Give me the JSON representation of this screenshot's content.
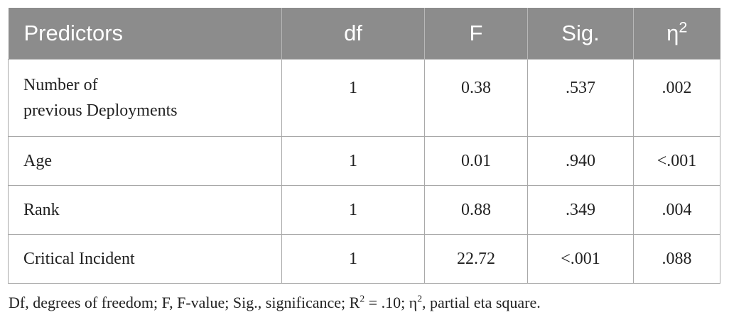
{
  "table": {
    "headers": [
      "Predictors",
      "df",
      "F",
      "Sig.",
      "η",
      "2"
    ],
    "rows": [
      [
        "Number of",
        "previous Deployments",
        "1",
        "0.38",
        ".537",
        ".002"
      ],
      [
        "Age",
        "1",
        "0.01",
        ".940",
        "<.001"
      ],
      [
        "Rank",
        "1",
        "0.88",
        ".349",
        ".004"
      ],
      [
        "Critical Incident",
        "1",
        "22.72",
        "<.001",
        ".088"
      ]
    ]
  },
  "note": {
    "part1": "Df, degrees of freedom; F, F-value; Sig., significance; R",
    "sup1": "2",
    "part2": " = .10; η",
    "sup2": "2",
    "part3": ", partial eta square."
  }
}
